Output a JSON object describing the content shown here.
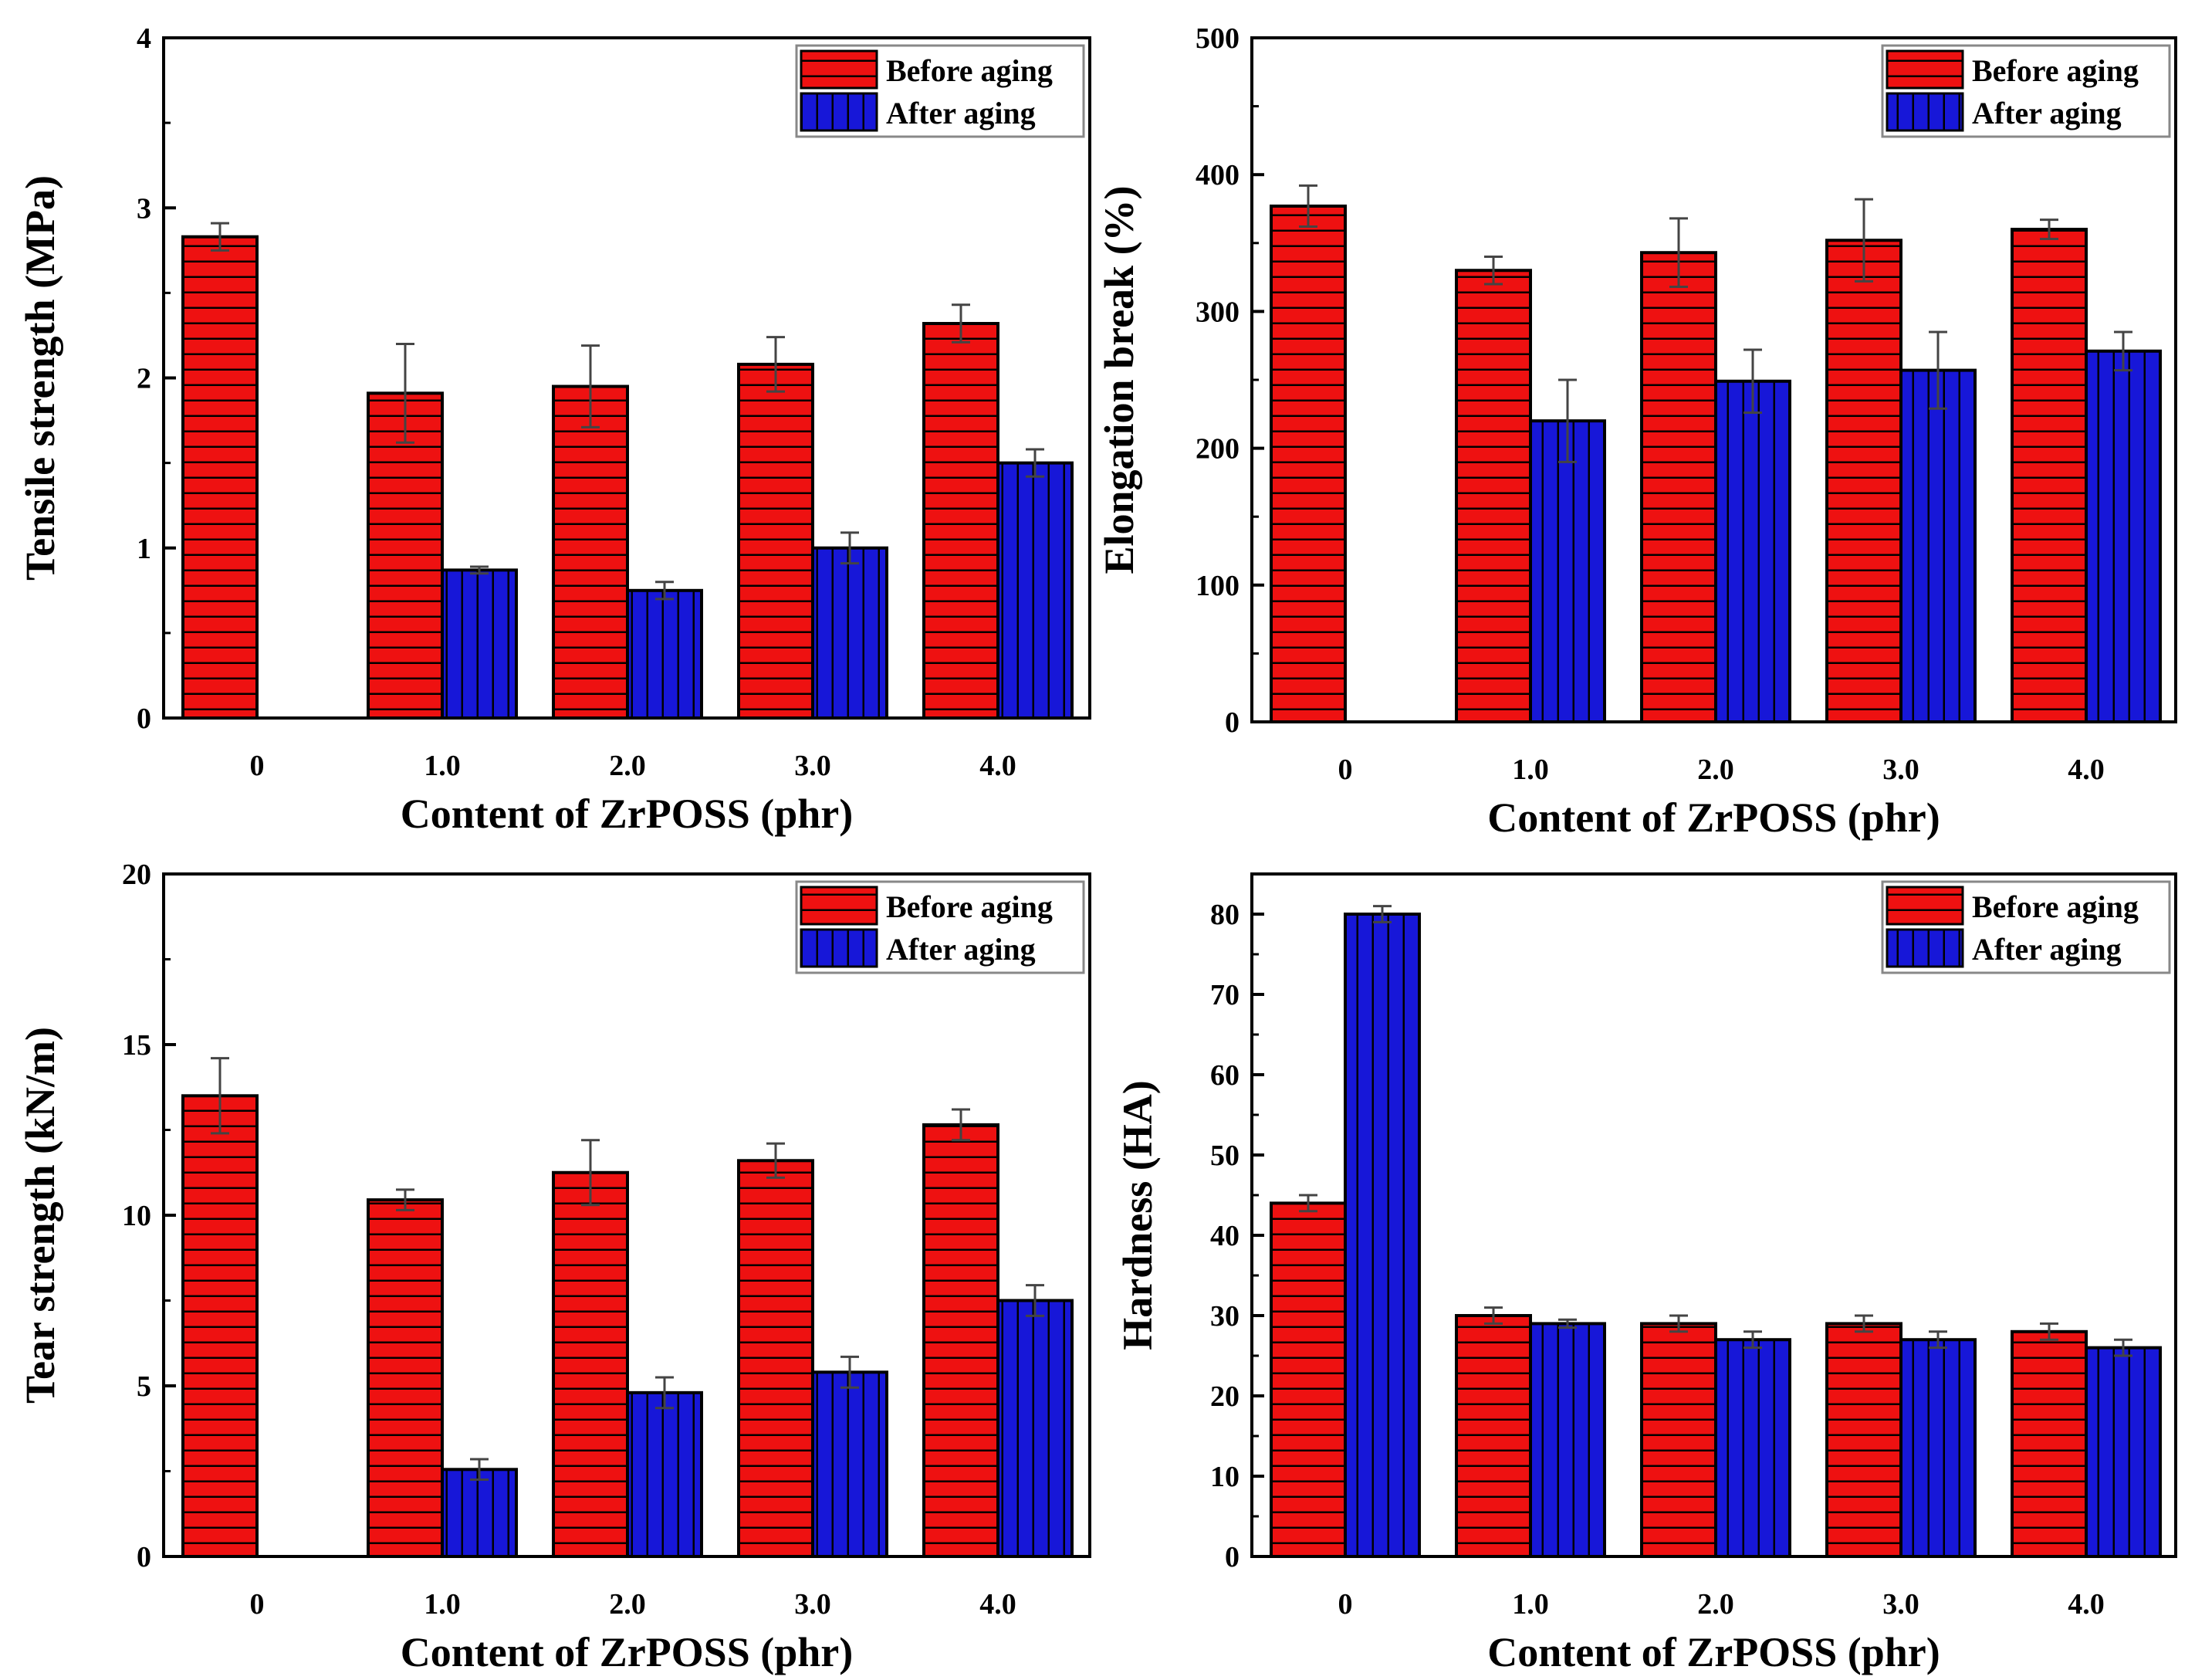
{
  "colors": {
    "before": "#ee1111",
    "after": "#1717d8",
    "stroke": "#000000"
  },
  "chart_data": [
    {
      "type": "bar",
      "categories": [
        "0",
        "1.0",
        "2.0",
        "3.0",
        "4.0"
      ],
      "xlabel": "Content of ZrPOSS (phr)",
      "ylabel": "Tensile strength (MPa)",
      "ylim": [
        0,
        4
      ],
      "yticks": [
        "0",
        "1",
        "2",
        "3",
        "4"
      ],
      "legend_position": "top-right",
      "series": [
        {
          "name": "Before aging",
          "values": [
            2.83,
            1.91,
            1.95,
            2.08,
            2.32
          ],
          "errors": [
            0.08,
            0.29,
            0.24,
            0.16,
            0.11
          ]
        },
        {
          "name": "After aging",
          "values": [
            null,
            0.87,
            0.75,
            1.0,
            1.5
          ],
          "errors": [
            0,
            0.02,
            0.05,
            0.09,
            0.08
          ]
        }
      ]
    },
    {
      "type": "bar",
      "categories": [
        "0",
        "1.0",
        "2.0",
        "3.0",
        "4.0"
      ],
      "xlabel": "Content of ZrPOSS (phr)",
      "ylabel": "Elongation break (%)",
      "ylim": [
        0,
        500
      ],
      "yticks": [
        "0",
        "100",
        "200",
        "300",
        "400",
        "500"
      ],
      "legend_position": "top-right",
      "series": [
        {
          "name": "Before aging",
          "values": [
            377,
            330,
            343,
            352,
            360
          ],
          "errors": [
            15,
            10,
            25,
            30,
            7
          ]
        },
        {
          "name": "After aging",
          "values": [
            null,
            220,
            249,
            257,
            271
          ],
          "errors": [
            0,
            30,
            23,
            28,
            14
          ]
        }
      ]
    },
    {
      "type": "bar",
      "categories": [
        "0",
        "1.0",
        "2.0",
        "3.0",
        "4.0"
      ],
      "xlabel": "Content of ZrPOSS (phr)",
      "ylabel": "Tear strength (kN/m)",
      "ylim": [
        0,
        20
      ],
      "yticks": [
        "0",
        "5",
        "10",
        "15",
        "20"
      ],
      "legend_position": "top-right",
      "series": [
        {
          "name": "Before aging",
          "values": [
            13.5,
            10.45,
            11.25,
            11.6,
            12.65
          ],
          "errors": [
            1.1,
            0.3,
            0.95,
            0.5,
            0.45
          ]
        },
        {
          "name": "After aging",
          "values": [
            null,
            2.55,
            4.8,
            5.4,
            7.5
          ],
          "errors": [
            0,
            0.3,
            0.45,
            0.45,
            0.45
          ]
        }
      ]
    },
    {
      "type": "bar",
      "categories": [
        "0",
        "1.0",
        "2.0",
        "3.0",
        "4.0"
      ],
      "xlabel": "Content of ZrPOSS (phr)",
      "ylabel": "Hardness (HA)",
      "ylim": [
        0,
        85
      ],
      "yticks": [
        "0",
        "10",
        "20",
        "30",
        "40",
        "50",
        "60",
        "70",
        "80"
      ],
      "legend_position": "top-right",
      "series": [
        {
          "name": "Before aging",
          "values": [
            44,
            30,
            29,
            29,
            28
          ],
          "errors": [
            1,
            1,
            1,
            1,
            1
          ]
        },
        {
          "name": "After aging",
          "values": [
            80,
            29,
            27,
            27,
            26
          ],
          "errors": [
            1,
            0.5,
            1,
            1,
            1
          ]
        }
      ]
    }
  ]
}
